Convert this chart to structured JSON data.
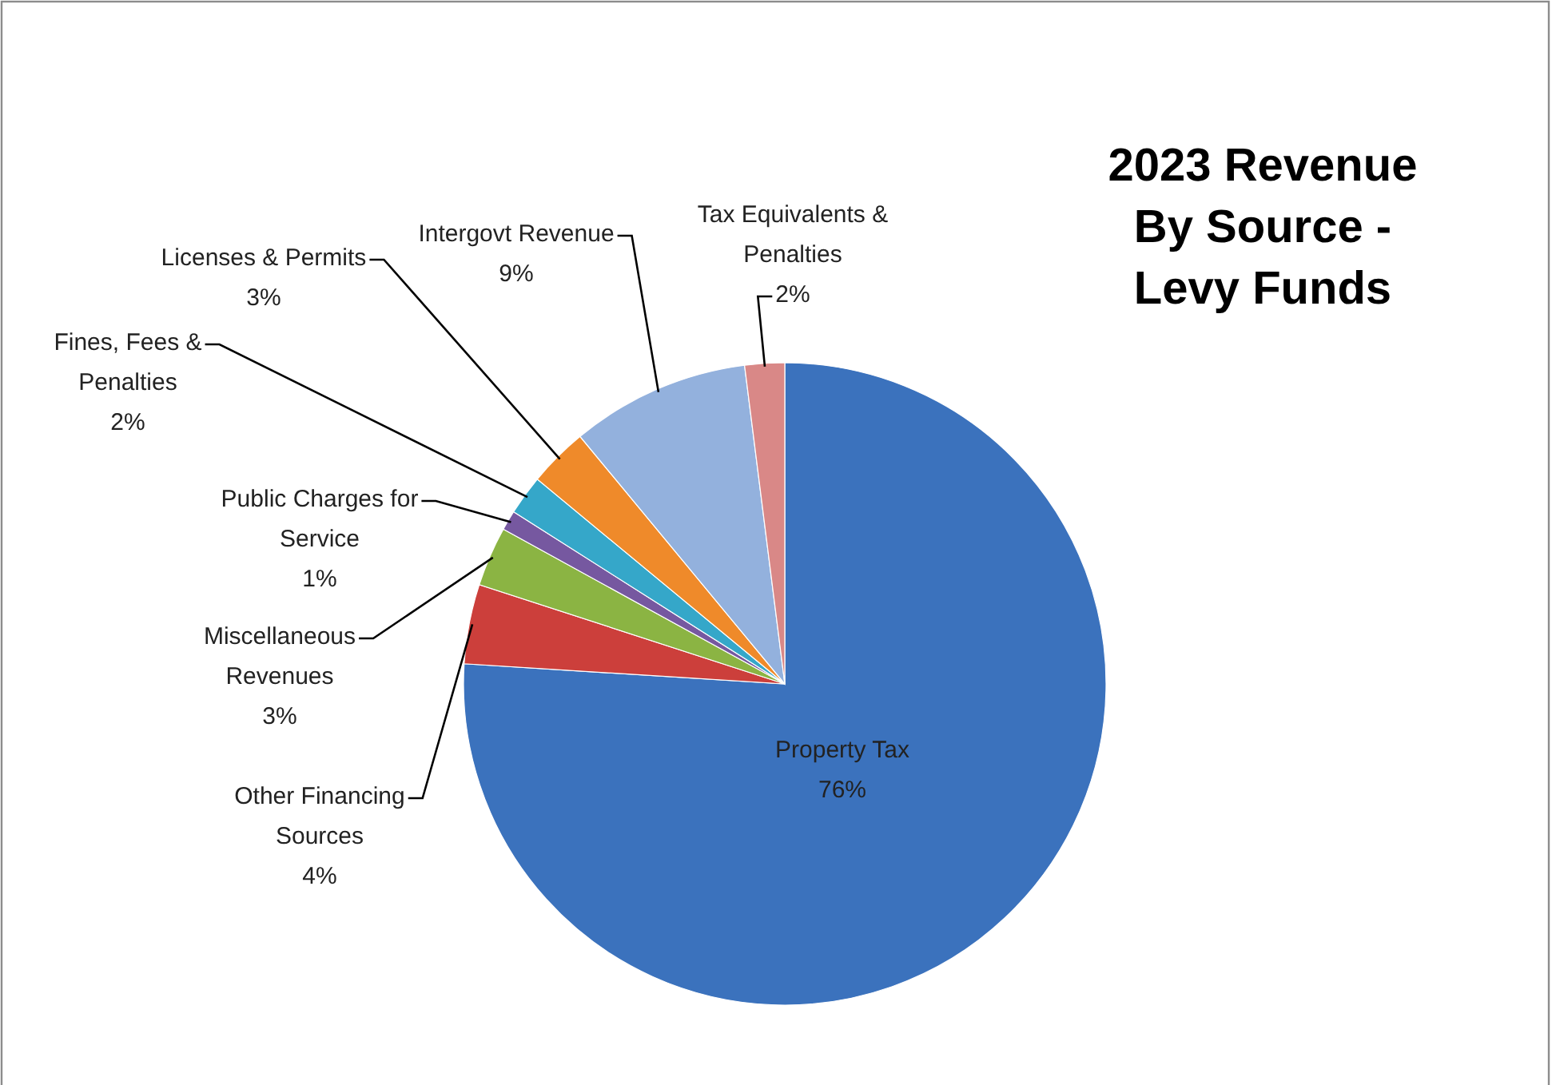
{
  "chart_data": {
    "type": "pie",
    "title": "2023 Revenue By Source - Levy Funds",
    "categories": [
      "Property Tax",
      "Other Financing Sources",
      "Miscellaneous Revenues",
      "Public Charges for Service",
      "Fines, Fees & Penalties",
      "Licenses & Permits",
      "Intergovt Revenue",
      "Tax Equivalents & Penalties"
    ],
    "values": [
      76,
      4,
      3,
      1,
      2,
      3,
      9,
      2
    ],
    "value_labels": [
      "76%",
      "4%",
      "3%",
      "1%",
      "2%",
      "3%",
      "9%",
      "2%"
    ],
    "colors": [
      "#3b72bd",
      "#cc3f3b",
      "#8bb443",
      "#7658a0",
      "#35a7c9",
      "#ef8a2a",
      "#93b1dd",
      "#d98887"
    ]
  }
}
